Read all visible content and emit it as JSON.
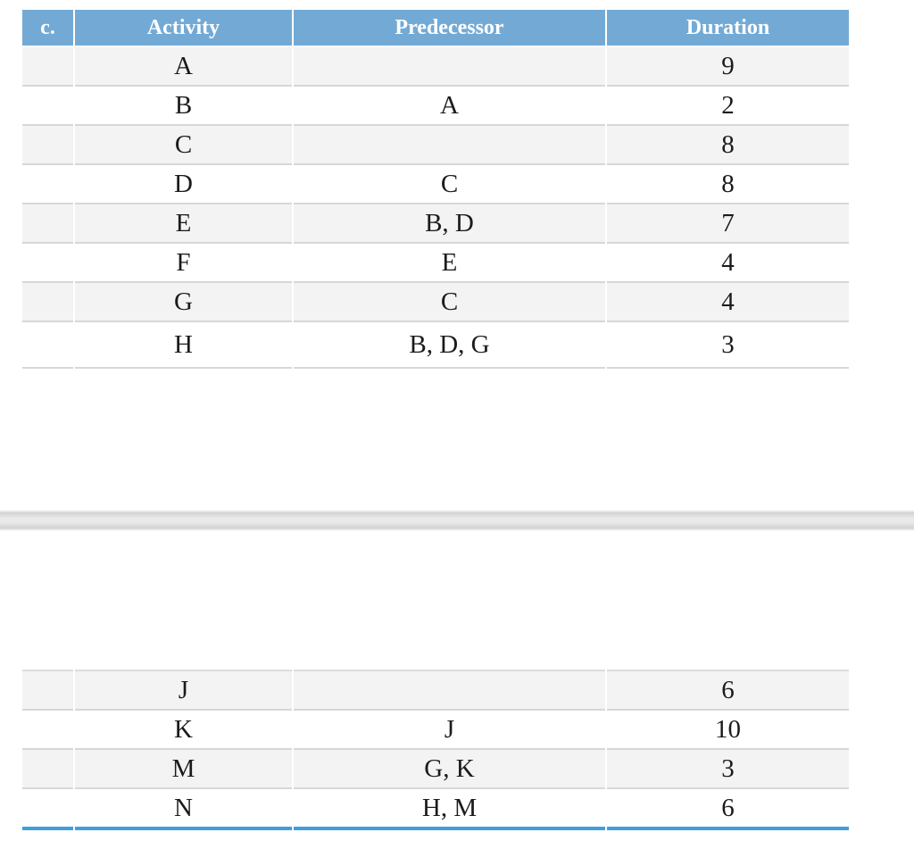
{
  "table1": {
    "headers": {
      "corner": "c.",
      "activity": "Activity",
      "predecessor": "Predecessor",
      "duration": "Duration"
    },
    "rows": [
      {
        "activity": "A",
        "predecessor": "",
        "duration": "9"
      },
      {
        "activity": "B",
        "predecessor": "A",
        "duration": "2"
      },
      {
        "activity": "C",
        "predecessor": "",
        "duration": "8"
      },
      {
        "activity": "D",
        "predecessor": "C",
        "duration": "8"
      },
      {
        "activity": "E",
        "predecessor": "B, D",
        "duration": "7"
      },
      {
        "activity": "F",
        "predecessor": "E",
        "duration": "4"
      },
      {
        "activity": "G",
        "predecessor": "C",
        "duration": "4"
      },
      {
        "activity": "H",
        "predecessor": "B, D, G",
        "duration": "3"
      }
    ]
  },
  "table2": {
    "rows": [
      {
        "activity": "J",
        "predecessor": "",
        "duration": "6"
      },
      {
        "activity": "K",
        "predecessor": "J",
        "duration": "10"
      },
      {
        "activity": "M",
        "predecessor": "G, K",
        "duration": "3"
      },
      {
        "activity": "N",
        "predecessor": "H, M",
        "duration": "6"
      }
    ]
  },
  "colors": {
    "header_bg": "#73aad5",
    "header_text": "#ffffff",
    "alt_row_bg": "#f3f3f3",
    "row_border": "#d7d7d7",
    "bottom_rule": "#3fa0da",
    "body_text": "#1b1b1b"
  }
}
